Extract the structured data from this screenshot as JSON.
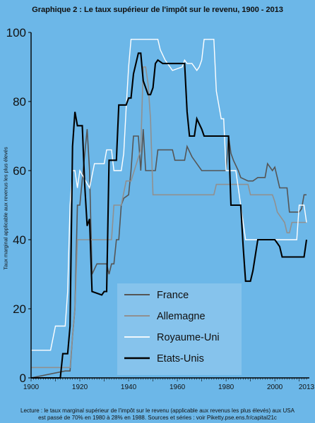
{
  "title": "Graphique 2 : Le taux supérieur de l'impôt sur le revenu, 1900 - 2013",
  "caption": [
    "Lecture : le taux marginal supérieur de l'impôt sur le revenu (applicable aux revenus les plus élevés) aux USA",
    "est passé de 70% en 1980 à 28% en 1988. Sources et séries : voir Piketty.pse.ens.fr/capital21c"
  ],
  "chart_data": {
    "type": "line",
    "title": "Graphique 2 : Le taux supérieur de l'impôt sur le revenu, 1900 - 2013",
    "ylabel": "Taux marginal applicable aux revenus les plus élevés",
    "xlabel": "",
    "xlim": [
      1900,
      2013
    ],
    "ylim": [
      0,
      100
    ],
    "x_ticks": [
      1900,
      1920,
      1940,
      1960,
      1980,
      2000,
      2013
    ],
    "y_ticks": [
      0,
      20,
      40,
      60,
      80,
      100
    ],
    "grid": false,
    "legend_position": "bottom-center",
    "series": [
      {
        "name": "France",
        "color": "#555555",
        "width": 1.6,
        "step": true,
        "points": [
          [
            1900,
            0
          ],
          [
            1914,
            2
          ],
          [
            1916,
            2
          ],
          [
            1917,
            12
          ],
          [
            1918,
            20
          ],
          [
            1919,
            50
          ],
          [
            1920,
            50
          ],
          [
            1923,
            72
          ],
          [
            1924,
            60
          ],
          [
            1925,
            30
          ],
          [
            1927,
            33
          ],
          [
            1928,
            33
          ],
          [
            1931,
            33
          ],
          [
            1932,
            30
          ],
          [
            1933,
            33
          ],
          [
            1934,
            33
          ],
          [
            1935,
            40
          ],
          [
            1936,
            40
          ],
          [
            1937,
            50
          ],
          [
            1938,
            52
          ],
          [
            1940,
            53
          ],
          [
            1941,
            60
          ],
          [
            1942,
            70
          ],
          [
            1944,
            70
          ],
          [
            1945,
            60
          ],
          [
            1946,
            72
          ],
          [
            1947,
            60
          ],
          [
            1950,
            60
          ],
          [
            1951,
            60
          ],
          [
            1952,
            66
          ],
          [
            1958,
            66
          ],
          [
            1959,
            63
          ],
          [
            1963,
            63
          ],
          [
            1964,
            67
          ],
          [
            1966,
            64
          ],
          [
            1970,
            60
          ],
          [
            1975,
            60
          ],
          [
            1979,
            60
          ],
          [
            1980,
            60
          ],
          [
            1981,
            70
          ],
          [
            1982,
            65
          ],
          [
            1983,
            63
          ],
          [
            1985,
            60
          ],
          [
            1986,
            58
          ],
          [
            1989,
            57
          ],
          [
            1991,
            57
          ],
          [
            1993,
            58
          ],
          [
            1996,
            58
          ],
          [
            1997,
            62
          ],
          [
            1999,
            60
          ],
          [
            2000,
            61
          ],
          [
            2001,
            58
          ],
          [
            2002,
            55
          ],
          [
            2005,
            55
          ],
          [
            2006,
            48
          ],
          [
            2010,
            48
          ],
          [
            2011,
            49
          ],
          [
            2012,
            53
          ],
          [
            2013,
            53
          ]
        ]
      },
      {
        "name": "Allemagne",
        "color": "#909090",
        "width": 1.6,
        "step": true,
        "points": [
          [
            1900,
            3
          ],
          [
            1914,
            3
          ],
          [
            1916,
            3
          ],
          [
            1917,
            12
          ],
          [
            1918,
            20
          ],
          [
            1919,
            40
          ],
          [
            1925,
            40
          ],
          [
            1933,
            40
          ],
          [
            1934,
            50
          ],
          [
            1937,
            50
          ],
          [
            1939,
            57
          ],
          [
            1941,
            57
          ],
          [
            1945,
            66
          ],
          [
            1946,
            90
          ],
          [
            1947,
            90
          ],
          [
            1948,
            85
          ],
          [
            1949,
            75
          ],
          [
            1950,
            53
          ],
          [
            1958,
            53
          ],
          [
            1959,
            53
          ],
          [
            1975,
            53
          ],
          [
            1976,
            56
          ],
          [
            1989,
            56
          ],
          [
            1990,
            53
          ],
          [
            1999,
            53
          ],
          [
            2000,
            51
          ],
          [
            2001,
            48
          ],
          [
            2004,
            45
          ],
          [
            2005,
            42
          ],
          [
            2006,
            42
          ],
          [
            2007,
            45
          ],
          [
            2013,
            45
          ]
        ]
      },
      {
        "name": "Royaume-Uni",
        "color": "#ffffff",
        "width": 1.4,
        "step": true,
        "points": [
          [
            1900,
            8
          ],
          [
            1908,
            8
          ],
          [
            1910,
            15
          ],
          [
            1914,
            15
          ],
          [
            1915,
            25
          ],
          [
            1916,
            50
          ],
          [
            1917,
            60
          ],
          [
            1918,
            60
          ],
          [
            1919,
            55
          ],
          [
            1920,
            60
          ],
          [
            1924,
            55
          ],
          [
            1926,
            62
          ],
          [
            1930,
            62
          ],
          [
            1931,
            66
          ],
          [
            1933,
            66
          ],
          [
            1934,
            60
          ],
          [
            1937,
            60
          ],
          [
            1938,
            65
          ],
          [
            1939,
            78
          ],
          [
            1940,
            90
          ],
          [
            1941,
            98
          ],
          [
            1952,
            98
          ],
          [
            1953,
            95
          ],
          [
            1955,
            92
          ],
          [
            1957,
            90
          ],
          [
            1958,
            89
          ],
          [
            1962,
            90
          ],
          [
            1963,
            92
          ],
          [
            1964,
            91
          ],
          [
            1966,
            91
          ],
          [
            1968,
            89
          ],
          [
            1969,
            90
          ],
          [
            1970,
            92
          ],
          [
            1971,
            98
          ],
          [
            1974,
            98
          ],
          [
            1975,
            98
          ],
          [
            1976,
            83
          ],
          [
            1978,
            75
          ],
          [
            1979,
            75
          ],
          [
            1980,
            60
          ],
          [
            1982,
            60
          ],
          [
            1984,
            60
          ],
          [
            1988,
            40
          ],
          [
            2009,
            40
          ],
          [
            2010,
            50
          ],
          [
            2012,
            50
          ],
          [
            2013,
            45
          ]
        ]
      },
      {
        "name": "Etats-Unis",
        "color": "#000000",
        "width": 2.1,
        "step": true,
        "points": [
          [
            1900,
            0
          ],
          [
            1912,
            0
          ],
          [
            1913,
            7
          ],
          [
            1915,
            7
          ],
          [
            1916,
            15
          ],
          [
            1917,
            67
          ],
          [
            1918,
            77
          ],
          [
            1919,
            73
          ],
          [
            1921,
            73
          ],
          [
            1922,
            56
          ],
          [
            1923,
            44
          ],
          [
            1924,
            46
          ],
          [
            1925,
            25
          ],
          [
            1929,
            24
          ],
          [
            1930,
            25
          ],
          [
            1931,
            25
          ],
          [
            1932,
            63
          ],
          [
            1935,
            63
          ],
          [
            1936,
            79
          ],
          [
            1939,
            79
          ],
          [
            1940,
            81
          ],
          [
            1941,
            81
          ],
          [
            1942,
            88
          ],
          [
            1944,
            94
          ],
          [
            1945,
            94
          ],
          [
            1946,
            86
          ],
          [
            1948,
            82
          ],
          [
            1949,
            82
          ],
          [
            1950,
            84
          ],
          [
            1951,
            91
          ],
          [
            1952,
            92
          ],
          [
            1954,
            91
          ],
          [
            1963,
            91
          ],
          [
            1964,
            77
          ],
          [
            1965,
            70
          ],
          [
            1967,
            70
          ],
          [
            1968,
            75
          ],
          [
            1970,
            72
          ],
          [
            1971,
            70
          ],
          [
            1978,
            70
          ],
          [
            1979,
            70
          ],
          [
            1981,
            70
          ],
          [
            1982,
            50
          ],
          [
            1986,
            50
          ],
          [
            1987,
            38
          ],
          [
            1988,
            28
          ],
          [
            1990,
            28
          ],
          [
            1991,
            31
          ],
          [
            1993,
            40
          ],
          [
            1999,
            40
          ],
          [
            2000,
            40
          ],
          [
            2001,
            39
          ],
          [
            2002,
            38
          ],
          [
            2003,
            35
          ],
          [
            2012,
            35
          ],
          [
            2013,
            40
          ]
        ]
      }
    ]
  },
  "legend": [
    {
      "label": "France",
      "color": "#555555"
    },
    {
      "label": "Allemagne",
      "color": "#909090"
    },
    {
      "label": "Royaume-Uni",
      "color": "#ffffff"
    },
    {
      "label": "Etats-Unis",
      "color": "#000000"
    }
  ]
}
